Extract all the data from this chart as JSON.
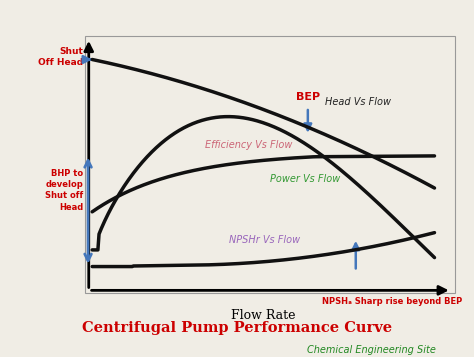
{
  "title": "Centrifugal Pump Performance Curve",
  "subtitle": "Chemical Engineering Site",
  "title_color": "#cc0000",
  "subtitle_color": "#228822",
  "bg_color": "#f0ede5",
  "xlabel": "Flow Rate",
  "curve_color": "#111111",
  "curve_lw": 2.5,
  "label_colors": {
    "head": "#222222",
    "efficiency": "#cc6677",
    "power": "#339933",
    "npshr": "#9966bb"
  },
  "label_texts": {
    "head": "Head Vs Flow",
    "efficiency": "Efficiency Vs Flow",
    "power": "Power Vs Flow",
    "npshr": "NPSHr Vs Flow"
  },
  "ann_color_red": "#cc0000",
  "ann_color_blue": "#4477bb",
  "shut_off_text": "Shut\nOff Head",
  "bhp_text": "BHP to\ndevelop\nShut off\nHead",
  "bep_text": "BEP",
  "npsh_sharp_text": "NPSHₐ Sharp rise beyond BEP"
}
